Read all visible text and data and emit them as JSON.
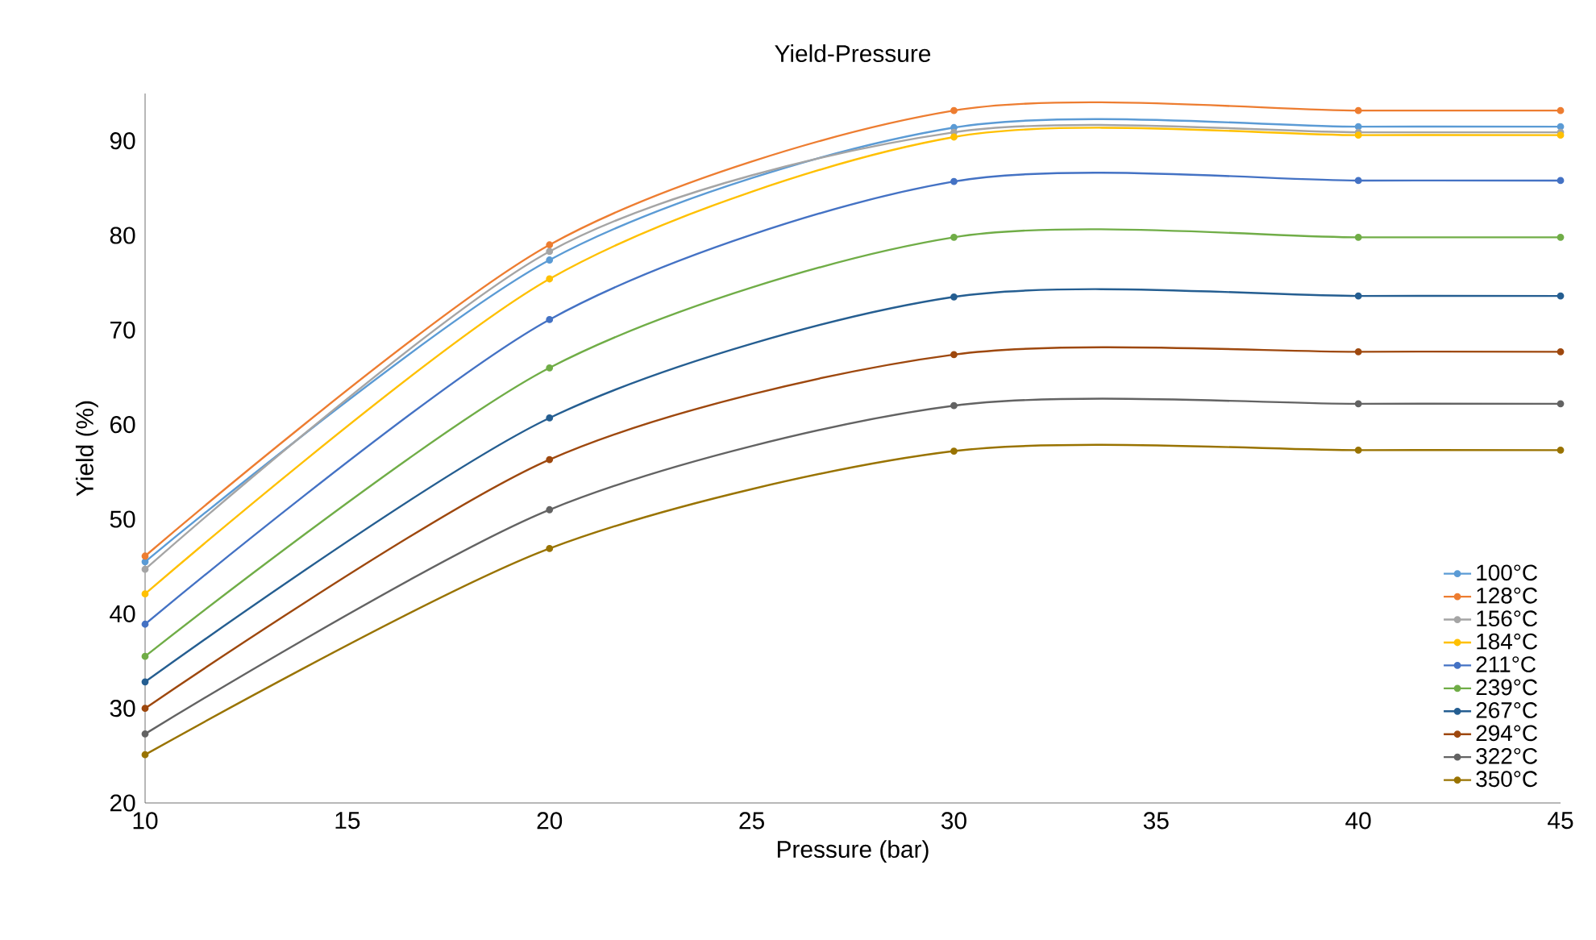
{
  "chart_data": {
    "type": "line",
    "title": "Yield-Pressure",
    "xlabel": "Pressure (bar)",
    "ylabel": "Yield (%)",
    "x": [
      10,
      20,
      30,
      40,
      45
    ],
    "xlim": [
      10,
      45
    ],
    "xticks": [
      10,
      15,
      20,
      25,
      30,
      35,
      40,
      45
    ],
    "ylim": [
      20,
      95
    ],
    "yticks": [
      20,
      30,
      40,
      50,
      60,
      70,
      80,
      90
    ],
    "grid": false,
    "legend": "bottom right",
    "marker": "circle",
    "line_style": "solid",
    "series": [
      {
        "name": "100°C",
        "color": "#5b9bd5",
        "values": [
          45.5,
          77.4,
          91.4,
          91.5,
          91.5
        ]
      },
      {
        "name": "128°C",
        "color": "#ed7d31",
        "values": [
          46.1,
          79.0,
          93.2,
          93.2,
          93.2
        ]
      },
      {
        "name": "156°C",
        "color": "#a5a5a5",
        "values": [
          44.7,
          78.3,
          90.9,
          90.9,
          90.9
        ]
      },
      {
        "name": "184°C",
        "color": "#ffc000",
        "values": [
          42.1,
          75.4,
          90.4,
          90.6,
          90.6
        ]
      },
      {
        "name": "211°C",
        "color": "#4472c4",
        "values": [
          38.9,
          71.1,
          85.7,
          85.8,
          85.8
        ]
      },
      {
        "name": "239°C",
        "color": "#70ad47",
        "values": [
          35.5,
          66.0,
          79.8,
          79.8,
          79.8
        ]
      },
      {
        "name": "267°C",
        "color": "#255e91",
        "values": [
          32.8,
          60.7,
          73.5,
          73.6,
          73.6
        ]
      },
      {
        "name": "294°C",
        "color": "#9e480e",
        "values": [
          30.0,
          56.3,
          67.4,
          67.7,
          67.7
        ]
      },
      {
        "name": "322°C",
        "color": "#636363",
        "values": [
          27.3,
          51.0,
          62.0,
          62.2,
          62.2
        ]
      },
      {
        "name": "350°C",
        "color": "#997300",
        "values": [
          25.1,
          46.9,
          57.2,
          57.3,
          57.3
        ]
      }
    ]
  }
}
